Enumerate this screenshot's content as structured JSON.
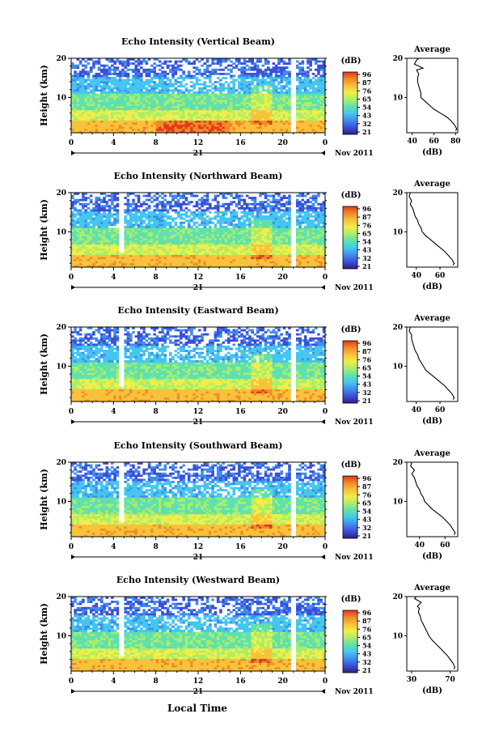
{
  "common": {
    "ylabel": "Height (km)",
    "colorbar_unit": "(dB)",
    "colorbar_ticks": [
      "96",
      "87",
      "76",
      "65",
      "54",
      "43",
      "32",
      "21"
    ],
    "avg_title": "Average",
    "avg_xlabel": "(dB)",
    "date_label": "21",
    "month_label": "Nov 2011",
    "x_ticks": [
      "0",
      "4",
      "8",
      "12",
      "16",
      "20",
      "0"
    ],
    "xlabel": "Local Time",
    "colormap": [
      "#2b1f8a",
      "#3b4fd6",
      "#3f8cf0",
      "#44c6ee",
      "#5fe0b0",
      "#a8ee6a",
      "#f0ee4a",
      "#f8c23a",
      "#f08a2a",
      "#e03a1a"
    ]
  },
  "chart_data": [
    {
      "type": "heatmap",
      "title": "Echo Intensity (Vertical Beam)",
      "x_range": [
        0,
        24
      ],
      "y_range": [
        1,
        20
      ],
      "y_ticks": [
        "20",
        "10"
      ],
      "avg_profile": {
        "x_ticks": [
          "40",
          "60",
          "80"
        ],
        "x_range": [
          35,
          82
        ],
        "points": [
          [
            46,
            20
          ],
          [
            44,
            19.5
          ],
          [
            42,
            18.5
          ],
          [
            50,
            17.5
          ],
          [
            44,
            17
          ],
          [
            46,
            16
          ],
          [
            45,
            15
          ],
          [
            45,
            14
          ],
          [
            46,
            13
          ],
          [
            47,
            12
          ],
          [
            48,
            11
          ],
          [
            48,
            10
          ],
          [
            52,
            9
          ],
          [
            56,
            8
          ],
          [
            60,
            7
          ],
          [
            66,
            6
          ],
          [
            72,
            5
          ],
          [
            76,
            4
          ],
          [
            79,
            3
          ],
          [
            81,
            2
          ],
          [
            80,
            1.5
          ]
        ]
      }
    },
    {
      "type": "heatmap",
      "title": "Echo Intensity (Northward Beam)",
      "x_range": [
        0,
        24
      ],
      "y_range": [
        1,
        20
      ],
      "y_ticks": [
        "20",
        "10"
      ],
      "avg_profile": {
        "x_ticks": [
          "40",
          "60"
        ],
        "x_range": [
          32,
          75
        ],
        "points": [
          [
            35,
            20
          ],
          [
            34,
            19
          ],
          [
            36,
            18
          ],
          [
            35,
            17
          ],
          [
            37,
            16
          ],
          [
            38,
            15
          ],
          [
            39,
            14
          ],
          [
            41,
            13
          ],
          [
            42,
            12
          ],
          [
            44,
            11
          ],
          [
            45,
            10
          ],
          [
            48,
            9
          ],
          [
            52,
            8
          ],
          [
            56,
            7
          ],
          [
            60,
            6
          ],
          [
            64,
            5
          ],
          [
            67,
            4
          ],
          [
            70,
            3
          ],
          [
            72,
            2
          ],
          [
            71,
            1.5
          ]
        ]
      }
    },
    {
      "type": "heatmap",
      "title": "Echo Intensity (Eastward Beam)",
      "x_range": [
        0,
        24
      ],
      "y_range": [
        1,
        20
      ],
      "y_ticks": [
        "20",
        "10"
      ],
      "avg_profile": {
        "x_ticks": [
          "40",
          "60"
        ],
        "x_range": [
          32,
          75
        ],
        "points": [
          [
            35,
            20
          ],
          [
            34,
            19
          ],
          [
            36,
            18
          ],
          [
            36,
            17
          ],
          [
            37,
            16
          ],
          [
            38,
            15
          ],
          [
            39,
            14
          ],
          [
            41,
            13
          ],
          [
            42,
            12
          ],
          [
            44,
            11
          ],
          [
            46,
            10
          ],
          [
            48,
            9
          ],
          [
            52,
            8
          ],
          [
            56,
            7
          ],
          [
            60,
            6
          ],
          [
            64,
            5
          ],
          [
            67,
            4
          ],
          [
            70,
            3
          ],
          [
            72,
            2
          ],
          [
            71,
            1.5
          ]
        ]
      }
    },
    {
      "type": "heatmap",
      "title": "Echo Intensity (Southward Beam)",
      "x_range": [
        0,
        24
      ],
      "y_range": [
        1,
        20
      ],
      "y_ticks": [
        "20",
        "10"
      ],
      "avg_profile": {
        "x_ticks": [
          "40",
          "60"
        ],
        "x_range": [
          30,
          70
        ],
        "points": [
          [
            34,
            20
          ],
          [
            33,
            19
          ],
          [
            36,
            18
          ],
          [
            34,
            17
          ],
          [
            36,
            16
          ],
          [
            37,
            15
          ],
          [
            38,
            14
          ],
          [
            40,
            13
          ],
          [
            41,
            12
          ],
          [
            43,
            11
          ],
          [
            44,
            10
          ],
          [
            47,
            9
          ],
          [
            50,
            8
          ],
          [
            54,
            7
          ],
          [
            58,
            6
          ],
          [
            61,
            5
          ],
          [
            64,
            4
          ],
          [
            66,
            3
          ],
          [
            68,
            2
          ],
          [
            67,
            1.5
          ]
        ]
      }
    },
    {
      "type": "heatmap",
      "title": "Echo Intensity (Westward Beam)",
      "x_range": [
        0,
        24
      ],
      "y_range": [
        1,
        20
      ],
      "y_ticks": [
        "20",
        "10"
      ],
      "avg_profile": {
        "x_ticks": [
          "30",
          "70"
        ],
        "x_range": [
          25,
          78
        ],
        "points": [
          [
            35,
            20
          ],
          [
            33,
            19.5
          ],
          [
            40,
            18.5
          ],
          [
            36,
            17.5
          ],
          [
            38,
            17
          ],
          [
            37,
            16
          ],
          [
            39,
            15
          ],
          [
            40,
            14
          ],
          [
            42,
            13
          ],
          [
            44,
            12
          ],
          [
            46,
            11
          ],
          [
            48,
            10
          ],
          [
            51,
            9
          ],
          [
            55,
            8
          ],
          [
            59,
            7
          ],
          [
            63,
            6
          ],
          [
            67,
            5
          ],
          [
            70,
            4
          ],
          [
            73,
            3
          ],
          [
            75,
            2
          ],
          [
            74,
            1.5
          ]
        ]
      }
    }
  ]
}
